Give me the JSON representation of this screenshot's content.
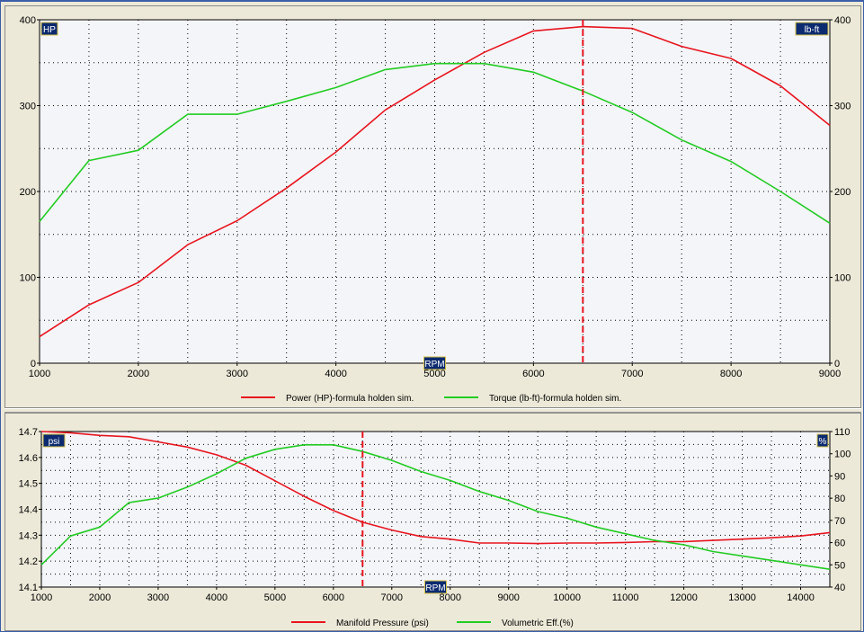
{
  "colors": {
    "plot_bg": "#f4f5f9",
    "power": "#e8141e",
    "torque": "#22cc22",
    "marker": "#e8141e",
    "badge_bg": "#0b2a6f",
    "badge_fg": "#ffffff",
    "badge_border": "#d4c24a"
  },
  "chart_data": [
    {
      "type": "line",
      "xlabel": "RPM",
      "y_left_label": "HP",
      "y_right_label": "lb-ft",
      "x_range": [
        1000,
        9000
      ],
      "x_ticks": [
        1000,
        2000,
        3000,
        4000,
        5000,
        6000,
        7000,
        8000,
        9000
      ],
      "y_left_range": [
        0,
        400
      ],
      "y_left_ticks": [
        0,
        100,
        200,
        300,
        400
      ],
      "y_right_range": [
        0,
        400
      ],
      "y_right_ticks": [
        0,
        100,
        200,
        300,
        400
      ],
      "grid": true,
      "marker_x": 6500,
      "x": [
        1000,
        1500,
        2000,
        2500,
        3000,
        3500,
        4000,
        4500,
        5000,
        5500,
        6000,
        6500,
        7000,
        7500,
        8000,
        8500,
        9000
      ],
      "series": [
        {
          "name": "Power (HP)-formula holden sim.",
          "axis": "left",
          "color": "#e8141e",
          "values": [
            31,
            68,
            94,
            138,
            166,
            204,
            246,
            295,
            330,
            362,
            387,
            392,
            390,
            369,
            355,
            323,
            277
          ]
        },
        {
          "name": "Torque (lb-ft)-formula holden sim.",
          "axis": "right",
          "color": "#22cc22",
          "values": [
            165,
            236,
            248,
            290,
            290,
            305,
            321,
            342,
            349,
            349,
            339,
            317,
            292,
            260,
            235,
            200,
            163
          ]
        }
      ],
      "legend_position": "bottom-center"
    },
    {
      "type": "line",
      "xlabel": "RPM",
      "y_left_label": "psi",
      "y_right_label": "%",
      "x_range": [
        1000,
        14500
      ],
      "x_ticks": [
        1000,
        2000,
        3000,
        4000,
        5000,
        6000,
        7000,
        8000,
        9000,
        10000,
        11000,
        12000,
        13000,
        14000
      ],
      "y_left_range": [
        14.1,
        14.7
      ],
      "y_left_ticks": [
        "14.1",
        "14.2",
        "14.3",
        "14.4",
        "14.5",
        "14.6",
        "14.7"
      ],
      "y_right_range": [
        40,
        110
      ],
      "y_right_ticks": [
        40,
        50,
        60,
        70,
        80,
        90,
        100,
        110
      ],
      "grid": true,
      "marker_x": 6500,
      "x": [
        1000,
        1500,
        2000,
        2500,
        3000,
        3500,
        4000,
        4500,
        5000,
        5500,
        6000,
        6500,
        7000,
        7500,
        8000,
        8500,
        9000,
        9500,
        10000,
        10500,
        11000,
        11500,
        12000,
        12500,
        13000,
        13500,
        14000,
        14500
      ],
      "series": [
        {
          "name": "Manifold Pressure (psi)",
          "axis": "left",
          "color": "#e8141e",
          "values": [
            14.7,
            14.695,
            14.685,
            14.68,
            14.66,
            14.64,
            14.61,
            14.57,
            14.51,
            14.45,
            14.395,
            14.35,
            14.32,
            14.295,
            14.285,
            14.27,
            14.27,
            14.268,
            14.27,
            14.27,
            14.272,
            14.275,
            14.275,
            14.28,
            14.285,
            14.29,
            14.297,
            14.31
          ]
        },
        {
          "name": "Volumetric Eff.(%)",
          "axis": "right",
          "color": "#22cc22",
          "values": [
            50,
            63,
            67,
            78,
            80,
            85,
            91,
            98,
            102,
            104,
            104,
            101,
            97,
            92,
            88,
            83,
            79,
            74,
            71,
            67,
            64,
            61,
            59,
            56,
            54,
            52,
            50,
            48
          ]
        }
      ],
      "legend_position": "bottom-center"
    }
  ]
}
